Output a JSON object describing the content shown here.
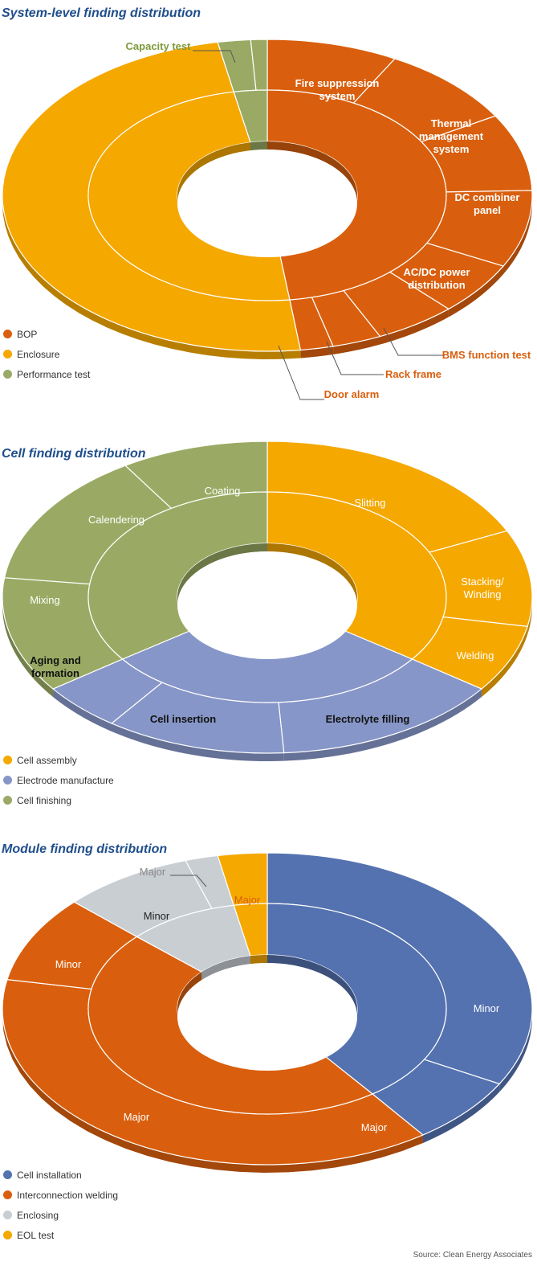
{
  "source": "Source: Clean Energy Associates",
  "chart_data": [
    {
      "type": "pie",
      "title": "System-level finding distribution",
      "colors": {
        "BOP": "#d95f0e",
        "Enclosure": "#f5a800",
        "Performance test": "#9aaa64"
      },
      "legend": [
        "BOP",
        "Enclosure",
        "Performance test"
      ],
      "inner_ring": [
        {
          "name": "BOP",
          "value": 48
        },
        {
          "name": "Enclosure",
          "value": 49
        },
        {
          "name": "Performance test",
          "value": 3
        }
      ],
      "outer_ring": [
        {
          "group": "BOP",
          "label": "Fire suppression system",
          "value": 8
        },
        {
          "group": "BOP",
          "label": "Thermal management system",
          "value": 8.5
        },
        {
          "group": "BOP",
          "label": "DC combiner panel",
          "value": 8
        },
        {
          "group": "BOP",
          "label": "AC/DC power distribution",
          "value": 8
        },
        {
          "group": "BOP",
          "label": "BMS function test",
          "value": 5.5
        },
        {
          "group": "BOP",
          "label": "Rack frame",
          "value": 5
        },
        {
          "group": "BOP",
          "label": "Door alarm",
          "value": 3
        },
        {
          "group": "BOP",
          "label": "",
          "value": 2
        },
        {
          "group": "Enclosure",
          "label": "",
          "value": 49
        },
        {
          "group": "Performance test",
          "label": "Capacity test",
          "value": 2
        },
        {
          "group": "Performance test",
          "label": "",
          "value": 1
        }
      ]
    },
    {
      "type": "pie",
      "title": "Cell finding distribution",
      "colors": {
        "Cell assembly": "#f5a800",
        "Electrode manufacture": "#8796c8",
        "Cell finishing": "#9aaa64"
      },
      "legend": [
        "Cell assembly",
        "Electrode manufacture",
        "Cell finishing"
      ],
      "inner_ring": [
        {
          "name": "Cell assembly",
          "value": 35
        },
        {
          "name": "Electrode manufacture",
          "value": 30
        },
        {
          "name": "Cell finishing",
          "value": 35
        }
      ],
      "outer_ring": [
        {
          "group": "Cell assembly",
          "label": "Slitting",
          "value": 18
        },
        {
          "group": "Cell assembly",
          "label": "Stacking/ Winding",
          "value": 10
        },
        {
          "group": "Cell assembly",
          "label": "Welding",
          "value": 7
        },
        {
          "group": "Electrode manufacture",
          "label": "Electrolyte filling",
          "value": 14
        },
        {
          "group": "Electrode manufacture",
          "label": "Cell insertion",
          "value": 11
        },
        {
          "group": "Electrode manufacture",
          "label": "Aging and formation",
          "value": 5
        },
        {
          "group": "Cell finishing",
          "label": "Mixing",
          "value": 12
        },
        {
          "group": "Cell finishing",
          "label": "Calendering",
          "value": 14
        },
        {
          "group": "Cell finishing",
          "label": "Coating",
          "value": 9
        }
      ]
    },
    {
      "type": "pie",
      "title": "Module finding distribution",
      "colors": {
        "Cell installation": "#5472b0",
        "Interconnection welding": "#d95f0e",
        "Enclosing": "#c9ced3",
        "EOL test": "#f5a800"
      },
      "legend": [
        "Cell installation",
        "Interconnection welding",
        "Enclosing",
        "EOL test"
      ],
      "inner_ring": [
        {
          "name": "Cell installation",
          "value": 40
        },
        {
          "name": "Interconnection welding",
          "value": 47
        },
        {
          "name": "Enclosing",
          "value": 10
        },
        {
          "name": "EOL test",
          "value": 3
        }
      ],
      "outer_ring": [
        {
          "group": "Cell installation",
          "label": "Minor",
          "value": 33
        },
        {
          "group": "Cell installation",
          "label": "Major",
          "value": 7
        },
        {
          "group": "Interconnection welding",
          "label": "Major",
          "value": 38
        },
        {
          "group": "Interconnection welding",
          "label": "Minor",
          "value": 9
        },
        {
          "group": "Enclosing",
          "label": "Minor",
          "value": 8
        },
        {
          "group": "Enclosing",
          "label": "Major",
          "value": 2
        },
        {
          "group": "EOL test",
          "label": "Major",
          "value": 3
        }
      ]
    }
  ]
}
